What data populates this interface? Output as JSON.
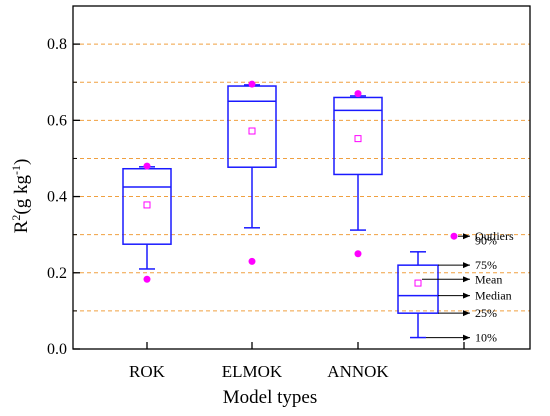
{
  "chart_data": {
    "type": "box",
    "xlabel": "Model types",
    "ylabel": "R",
    "ylabel_sup": "2",
    "ylabel_unit": "(g kg",
    "ylabel_unit_sup": "-1",
    "ylabel_unit_close": ")",
    "ylim": [
      0.0,
      0.9
    ],
    "yticks": [
      "0.0",
      "0.2",
      "0.4",
      "0.6",
      "0.8"
    ],
    "ytick_values": [
      0.0,
      0.2,
      0.4,
      0.6,
      0.8
    ],
    "grid": {
      "y": true,
      "style": "dashed",
      "color": "#f0a040",
      "values": [
        0.1,
        0.2,
        0.3,
        0.4,
        0.5,
        0.6,
        0.7,
        0.8
      ]
    },
    "categories": [
      "ROK",
      "ELMOK",
      "ANNOK"
    ],
    "box_color": "#1a1aff",
    "point_color": "#ff00ff",
    "boxes": [
      {
        "name": "ROK",
        "p10": 0.21,
        "p25": 0.275,
        "median": 0.425,
        "mean": 0.378,
        "p75": 0.473,
        "p90": 0.478,
        "outliers": [
          0.183,
          0.48
        ]
      },
      {
        "name": "ELMOK",
        "p10": 0.318,
        "p25": 0.477,
        "median": 0.65,
        "mean": 0.572,
        "p75": 0.69,
        "p90": 0.693,
        "outliers": [
          0.23,
          0.695
        ]
      },
      {
        "name": "ANNOK",
        "p10": 0.312,
        "p25": 0.458,
        "median": 0.626,
        "mean": 0.552,
        "p75": 0.66,
        "p90": 0.664,
        "outliers": [
          0.25,
          0.67
        ]
      }
    ],
    "legend_box": {
      "p10": 0.03,
      "p25": 0.094,
      "median": 0.14,
      "mean": 0.173,
      "p75": 0.22,
      "p90": 0.255,
      "outlier": 0.296,
      "labels": {
        "outliers": "Outliers",
        "p90": "90%",
        "p75": "75%",
        "mean": "Mean",
        "median": "Median",
        "p25": "25%",
        "p10": "10%"
      }
    }
  }
}
